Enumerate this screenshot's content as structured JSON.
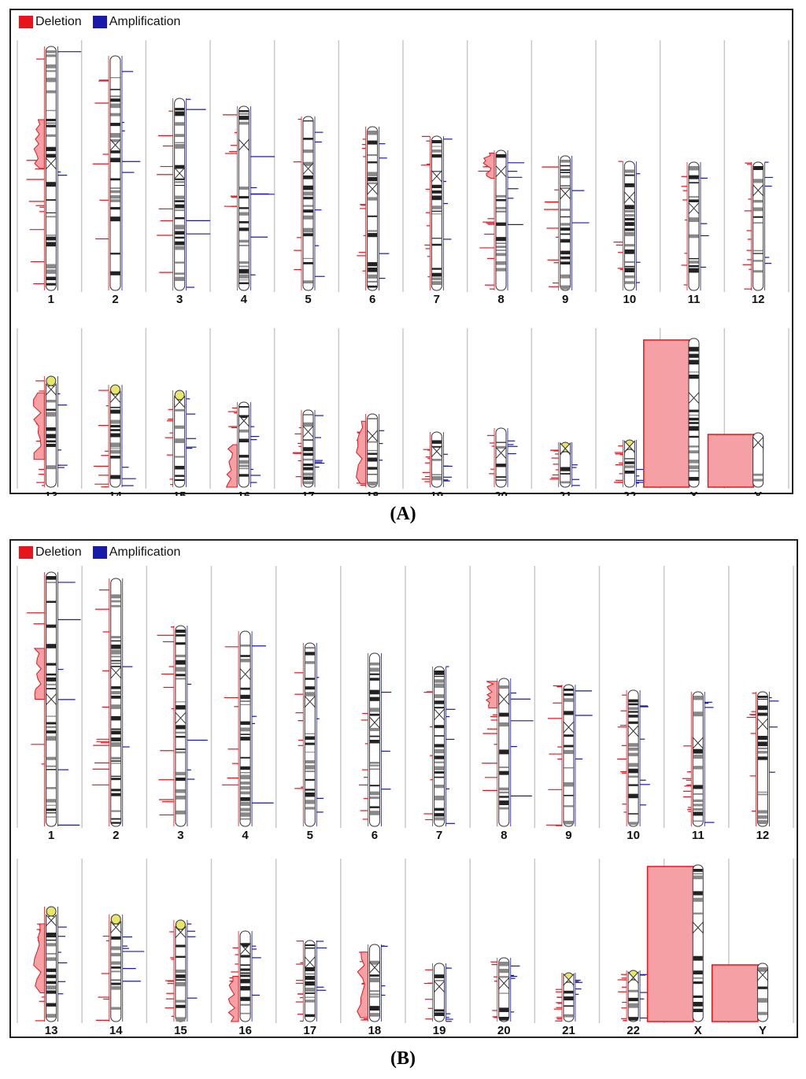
{
  "panels": [
    {
      "label": "(A)",
      "legend": {
        "deletion": "Deletion",
        "amplification": "Amplification"
      }
    },
    {
      "label": "(B)",
      "legend": {
        "deletion": "Deletion",
        "amplification": "Amplification"
      }
    }
  ],
  "chromosomes": {
    "row1": [
      "1",
      "2",
      "3",
      "4",
      "5",
      "6",
      "7",
      "8",
      "9",
      "10",
      "11",
      "12"
    ],
    "row2": [
      "13",
      "14",
      "15",
      "16",
      "17",
      "18",
      "19",
      "20",
      "21",
      "22",
      "X",
      "Y"
    ]
  },
  "colors": {
    "deletion": "#e8141c",
    "amplification": "#1a1aa8",
    "deletion_fill": "#f4a0a4",
    "frame": "#222222",
    "divider": "#c8c8c8"
  }
}
